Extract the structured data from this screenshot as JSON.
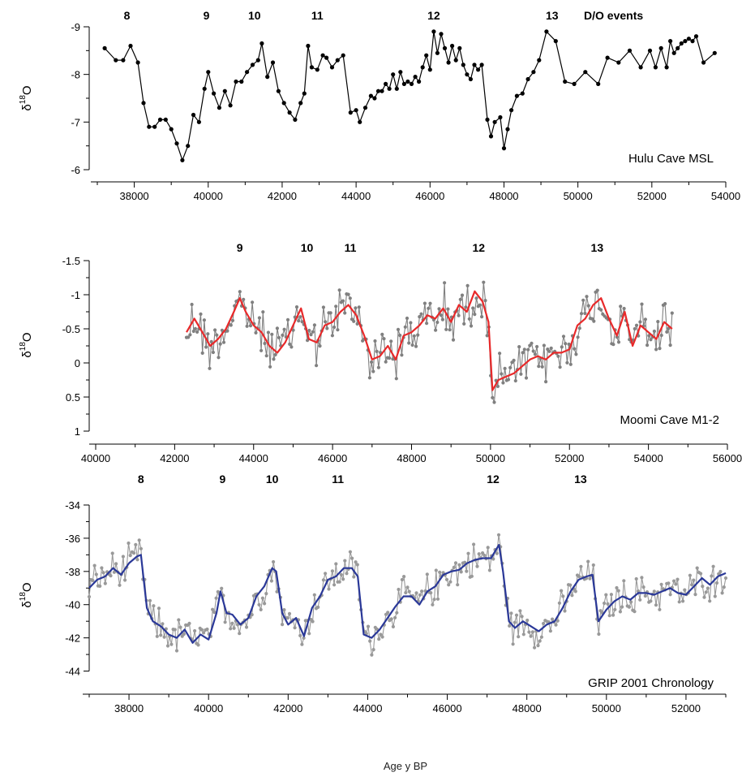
{
  "figure": {
    "xlabel": "Age y BP"
  },
  "chart_data": [
    {
      "type": "line",
      "panel": "Hulu Cave MSL",
      "title": "Hulu Cave MSL",
      "ylabel_main": "δ",
      "ylabel_sup": "18",
      "ylabel_tail": "O",
      "ylim": [
        -9,
        -6
      ],
      "y_inverted": true,
      "yticks": [
        -9,
        -8,
        -7,
        -6
      ],
      "xlim": [
        37000,
        54000
      ],
      "xticks": [
        38000,
        40000,
        42000,
        44000,
        46000,
        48000,
        50000,
        52000,
        54000
      ],
      "events_header": "D/O events",
      "events": [
        {
          "label": "8",
          "x": 37800
        },
        {
          "label": "9",
          "x": 39950
        },
        {
          "label": "10",
          "x": 41250
        },
        {
          "label": "11",
          "x": 42950
        },
        {
          "label": "12",
          "x": 46100
        },
        {
          "label": "13",
          "x": 49300
        }
      ],
      "series": [
        {
          "color": "#000000",
          "markers": true,
          "x": [
            37200,
            37500,
            37700,
            37900,
            38100,
            38250,
            38400,
            38550,
            38700,
            38850,
            39000,
            39150,
            39300,
            39450,
            39600,
            39750,
            39900,
            40000,
            40150,
            40300,
            40450,
            40600,
            40750,
            40900,
            41050,
            41200,
            41350,
            41450,
            41600,
            41750,
            41900,
            42050,
            42200,
            42350,
            42500,
            42600,
            42700,
            42800,
            42950,
            43100,
            43200,
            43350,
            43500,
            43650,
            43850,
            44000,
            44100,
            44250,
            44400,
            44500,
            44600,
            44700,
            44800,
            44900,
            45000,
            45100,
            45200,
            45300,
            45400,
            45500,
            45600,
            45700,
            45800,
            45900,
            46000,
            46100,
            46200,
            46300,
            46400,
            46500,
            46600,
            46700,
            46800,
            46900,
            47000,
            47100,
            47200,
            47300,
            47400,
            47550,
            47650,
            47750,
            47900,
            48000,
            48100,
            48200,
            48350,
            48500,
            48650,
            48800,
            48950,
            49150,
            49400,
            49650,
            49900,
            50200,
            50550,
            50800,
            51100,
            51400,
            51700,
            51950,
            52100,
            52250,
            52400,
            52500,
            52600,
            52700,
            52800,
            52900,
            53000,
            53100,
            53200,
            53400,
            53700
          ],
          "y": [
            -8.55,
            -8.3,
            -8.3,
            -8.6,
            -8.25,
            -7.4,
            -6.9,
            -6.9,
            -7.05,
            -7.05,
            -6.85,
            -6.55,
            -6.2,
            -6.5,
            -7.15,
            -7.0,
            -7.7,
            -8.05,
            -7.6,
            -7.3,
            -7.65,
            -7.35,
            -7.85,
            -7.85,
            -8.05,
            -8.2,
            -8.3,
            -8.65,
            -7.95,
            -8.25,
            -7.65,
            -7.4,
            -7.2,
            -7.05,
            -7.4,
            -7.6,
            -8.6,
            -8.15,
            -8.1,
            -8.4,
            -8.35,
            -8.15,
            -8.3,
            -8.4,
            -7.2,
            -7.25,
            -7.0,
            -7.3,
            -7.55,
            -7.5,
            -7.65,
            -7.65,
            -7.8,
            -7.7,
            -8.0,
            -7.7,
            -8.05,
            -7.8,
            -7.85,
            -7.8,
            -7.95,
            -7.85,
            -8.15,
            -8.4,
            -8.1,
            -8.9,
            -8.45,
            -8.85,
            -8.55,
            -8.25,
            -8.6,
            -8.3,
            -8.55,
            -8.2,
            -8.0,
            -7.9,
            -8.2,
            -8.1,
            -8.2,
            -7.05,
            -6.7,
            -7.0,
            -7.1,
            -6.45,
            -6.85,
            -7.25,
            -7.55,
            -7.6,
            -7.9,
            -8.05,
            -8.3,
            -8.9,
            -8.7,
            -7.85,
            -7.8,
            -8.05,
            -7.8,
            -8.35,
            -8.25,
            -8.5,
            -8.15,
            -8.5,
            -8.15,
            -8.55,
            -8.15,
            -8.7,
            -8.45,
            -8.55,
            -8.65,
            -8.7,
            -8.75,
            -8.7,
            -8.8,
            -8.25,
            -8.45
          ]
        }
      ]
    },
    {
      "type": "line",
      "panel": "Moomi Cave M1-2",
      "title": "Moomi Cave M1-2",
      "ylabel_main": "δ",
      "ylabel_sup": "18",
      "ylabel_tail": "O",
      "ylim": [
        -1.5,
        1
      ],
      "y_inverted": true,
      "yticks": [
        -1.5,
        -1,
        -0.5,
        0,
        0.5,
        1
      ],
      "xlim": [
        40000,
        56000
      ],
      "xticks": [
        40000,
        42000,
        44000,
        46000,
        48000,
        50000,
        52000,
        54000,
        56000
      ],
      "events": [
        {
          "label": "9",
          "x": 43650
        },
        {
          "label": "10",
          "x": 45350
        },
        {
          "label": "11",
          "x": 46450
        },
        {
          "label": "12",
          "x": 49700
        },
        {
          "label": "13",
          "x": 52700
        }
      ],
      "series": [
        {
          "name": "raw",
          "color": "#808080",
          "markers": true,
          "noise_amplitude": 0.45,
          "x": [
            42300,
            42500,
            42700,
            42900,
            43100,
            43300,
            43500,
            43650,
            43800,
            44000,
            44200,
            44400,
            44600,
            44800,
            45000,
            45200,
            45400,
            45600,
            45800,
            46000,
            46200,
            46400,
            46600,
            46800,
            47000,
            47200,
            47400,
            47600,
            47800,
            48000,
            48200,
            48400,
            48600,
            48800,
            49000,
            49200,
            49400,
            49600,
            49800,
            49950,
            50050,
            50200,
            50400,
            50600,
            50800,
            51000,
            51200,
            51400,
            51600,
            51800,
            52000,
            52200,
            52400,
            52600,
            52800,
            53000,
            53200,
            53400,
            53600,
            53800,
            54000,
            54200,
            54400,
            54600
          ],
          "y": [
            -0.45,
            -0.65,
            -0.45,
            -0.25,
            -0.35,
            -0.5,
            -0.75,
            -0.95,
            -0.75,
            -0.55,
            -0.45,
            -0.25,
            -0.15,
            -0.3,
            -0.55,
            -0.8,
            -0.35,
            -0.3,
            -0.55,
            -0.6,
            -0.75,
            -0.85,
            -0.7,
            -0.4,
            -0.05,
            -0.1,
            -0.25,
            -0.05,
            -0.4,
            -0.45,
            -0.55,
            -0.7,
            -0.65,
            -0.8,
            -0.6,
            -0.85,
            -0.75,
            -1.05,
            -0.9,
            -0.6,
            0.4,
            0.25,
            0.2,
            0.15,
            0.05,
            -0.05,
            -0.1,
            -0.05,
            -0.15,
            -0.15,
            -0.2,
            -0.55,
            -0.65,
            -0.85,
            -0.95,
            -0.65,
            -0.4,
            -0.75,
            -0.25,
            -0.55,
            -0.45,
            -0.35,
            -0.6,
            -0.5
          ]
        },
        {
          "name": "smoothed",
          "color": "#e8292a",
          "markers": false,
          "x": [
            42300,
            42500,
            42700,
            42900,
            43100,
            43300,
            43500,
            43650,
            43800,
            44000,
            44200,
            44400,
            44600,
            44800,
            45000,
            45200,
            45400,
            45600,
            45800,
            46000,
            46200,
            46400,
            46600,
            46800,
            47000,
            47200,
            47400,
            47600,
            47800,
            48000,
            48200,
            48400,
            48600,
            48800,
            49000,
            49200,
            49400,
            49600,
            49800,
            49950,
            50050,
            50200,
            50400,
            50600,
            50800,
            51000,
            51200,
            51400,
            51600,
            51800,
            52000,
            52200,
            52400,
            52600,
            52800,
            53000,
            53200,
            53400,
            53600,
            53800,
            54000,
            54200,
            54400,
            54600
          ],
          "y": [
            -0.45,
            -0.65,
            -0.45,
            -0.25,
            -0.35,
            -0.5,
            -0.75,
            -0.95,
            -0.75,
            -0.55,
            -0.45,
            -0.25,
            -0.15,
            -0.3,
            -0.55,
            -0.8,
            -0.35,
            -0.3,
            -0.55,
            -0.6,
            -0.75,
            -0.85,
            -0.7,
            -0.4,
            -0.05,
            -0.1,
            -0.25,
            -0.05,
            -0.4,
            -0.45,
            -0.55,
            -0.7,
            -0.65,
            -0.8,
            -0.6,
            -0.85,
            -0.75,
            -1.05,
            -0.9,
            -0.6,
            0.4,
            0.25,
            0.2,
            0.15,
            0.05,
            -0.05,
            -0.1,
            -0.05,
            -0.15,
            -0.15,
            -0.2,
            -0.55,
            -0.65,
            -0.85,
            -0.95,
            -0.65,
            -0.4,
            -0.75,
            -0.25,
            -0.55,
            -0.45,
            -0.35,
            -0.6,
            -0.5
          ]
        }
      ]
    },
    {
      "type": "line",
      "panel": "GRIP 2001 Chronology",
      "title": "GRIP 2001 Chronology",
      "ylabel_main": "δ",
      "ylabel_sup": "18",
      "ylabel_tail": "O",
      "ylim": [
        -45,
        -34
      ],
      "y_inverted": false,
      "yticks": [
        -34,
        -36,
        -38,
        -40,
        -42,
        -44
      ],
      "xlim": [
        37000,
        53000
      ],
      "xticks": [
        38000,
        40000,
        42000,
        44000,
        46000,
        48000,
        50000,
        52000
      ],
      "events": [
        {
          "label": "8",
          "x": 38300
        },
        {
          "label": "9",
          "x": 40350
        },
        {
          "label": "10",
          "x": 41600
        },
        {
          "label": "11",
          "x": 43250
        },
        {
          "label": "12",
          "x": 47150
        },
        {
          "label": "13",
          "x": 49350
        }
      ],
      "series": [
        {
          "name": "raw",
          "color": "#999999",
          "markers": true,
          "noise_amplitude": 1.3,
          "x": [
            37000,
            37200,
            37400,
            37600,
            37800,
            38000,
            38200,
            38300,
            38450,
            38600,
            38800,
            39000,
            39200,
            39400,
            39600,
            39800,
            40000,
            40200,
            40300,
            40450,
            40600,
            40800,
            41000,
            41200,
            41400,
            41600,
            41700,
            41850,
            42000,
            42200,
            42400,
            42600,
            42800,
            43000,
            43200,
            43400,
            43600,
            43750,
            43900,
            44100,
            44300,
            44500,
            44700,
            44900,
            45100,
            45300,
            45500,
            45700,
            45900,
            46100,
            46300,
            46500,
            46700,
            46900,
            47100,
            47300,
            47400,
            47550,
            47700,
            47900,
            48100,
            48300,
            48500,
            48700,
            48900,
            49100,
            49300,
            49500,
            49650,
            49800,
            50000,
            50200,
            50400,
            50600,
            50800,
            51000,
            51200,
            51400,
            51600,
            51800,
            52000,
            52200,
            52400,
            52600,
            52800,
            53000
          ],
          "y": [
            -39,
            -38.5,
            -38.3,
            -37.8,
            -38.2,
            -37.5,
            -37.1,
            -37.0,
            -40.2,
            -41.0,
            -41.3,
            -41.8,
            -42.0,
            -41.5,
            -42.3,
            -41.8,
            -42.1,
            -40.5,
            -39.2,
            -40.5,
            -40.6,
            -41.2,
            -40.8,
            -39.5,
            -38.9,
            -37.8,
            -38.0,
            -40.5,
            -41.2,
            -40.8,
            -41.9,
            -40.2,
            -39.5,
            -38.5,
            -38.3,
            -37.8,
            -37.8,
            -38.3,
            -41.8,
            -42.0,
            -41.5,
            -40.8,
            -40.1,
            -39.5,
            -39.5,
            -40.0,
            -39.2,
            -38.9,
            -38.2,
            -38.0,
            -37.9,
            -37.5,
            -37.3,
            -37.2,
            -37.2,
            -36.4,
            -38.0,
            -41.0,
            -41.4,
            -41.0,
            -41.3,
            -41.6,
            -41.2,
            -41.0,
            -40.2,
            -39.2,
            -38.5,
            -38.3,
            -38.2,
            -41.0,
            -40.3,
            -39.8,
            -39.5,
            -39.7,
            -39.3,
            -39.3,
            -39.4,
            -39.2,
            -39.0,
            -39.3,
            -39.4,
            -38.9,
            -38.4,
            -38.8,
            -38.3,
            -38.1
          ]
        },
        {
          "name": "smoothed",
          "color": "#2a3898",
          "markers": false,
          "x": [
            37000,
            37200,
            37400,
            37600,
            37800,
            38000,
            38200,
            38300,
            38450,
            38600,
            38800,
            39000,
            39200,
            39400,
            39600,
            39800,
            40000,
            40200,
            40300,
            40450,
            40600,
            40800,
            41000,
            41200,
            41400,
            41600,
            41700,
            41850,
            42000,
            42200,
            42400,
            42600,
            42800,
            43000,
            43200,
            43400,
            43600,
            43750,
            43900,
            44100,
            44300,
            44500,
            44700,
            44900,
            45100,
            45300,
            45500,
            45700,
            45900,
            46100,
            46300,
            46500,
            46700,
            46900,
            47100,
            47300,
            47400,
            47550,
            47700,
            47900,
            48100,
            48300,
            48500,
            48700,
            48900,
            49100,
            49300,
            49500,
            49650,
            49800,
            50000,
            50200,
            50400,
            50600,
            50800,
            51000,
            51200,
            51400,
            51600,
            51800,
            52000,
            52200,
            52400,
            52600,
            52800,
            53000
          ],
          "y": [
            -39,
            -38.5,
            -38.3,
            -37.8,
            -38.2,
            -37.5,
            -37.1,
            -37.0,
            -40.2,
            -41.0,
            -41.3,
            -41.8,
            -42.0,
            -41.5,
            -42.3,
            -41.8,
            -42.1,
            -40.5,
            -39.2,
            -40.5,
            -40.6,
            -41.2,
            -40.8,
            -39.5,
            -38.9,
            -37.8,
            -38.0,
            -40.5,
            -41.2,
            -40.8,
            -41.9,
            -40.2,
            -39.5,
            -38.5,
            -38.3,
            -37.8,
            -37.8,
            -38.3,
            -41.8,
            -42.0,
            -41.5,
            -40.8,
            -40.1,
            -39.5,
            -39.5,
            -40.0,
            -39.2,
            -38.9,
            -38.2,
            -38.0,
            -37.9,
            -37.5,
            -37.3,
            -37.2,
            -37.2,
            -36.4,
            -38.0,
            -41.0,
            -41.4,
            -41.0,
            -41.3,
            -41.6,
            -41.2,
            -41.0,
            -40.2,
            -39.2,
            -38.5,
            -38.3,
            -38.2,
            -41.0,
            -40.3,
            -39.8,
            -39.5,
            -39.7,
            -39.3,
            -39.3,
            -39.4,
            -39.2,
            -39.0,
            -39.3,
            -39.4,
            -38.9,
            -38.4,
            -38.8,
            -38.3,
            -38.1
          ]
        }
      ]
    }
  ]
}
